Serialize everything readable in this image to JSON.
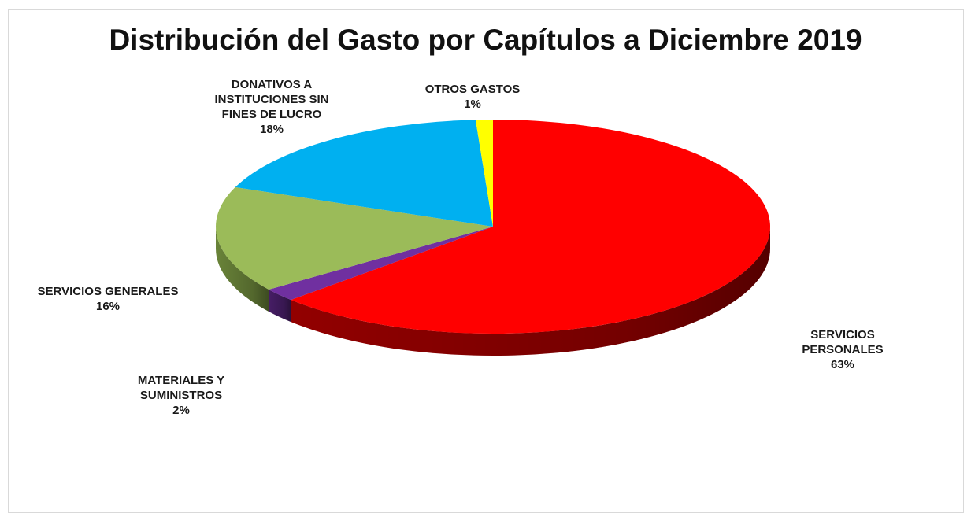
{
  "chart_data": {
    "type": "pie",
    "title": "Distribución del Gasto por Capítulos a Diciembre 2019",
    "legend": "none",
    "slices": [
      {
        "name": "SERVICIOS PERSONALES",
        "label_lines": [
          "SERVICIOS",
          "PERSONALES"
        ],
        "value": 63,
        "value_label": "63%",
        "color": "#ff0000",
        "side_color": "#9a0000"
      },
      {
        "name": "MATERIALES Y SUMINISTROS",
        "label_lines": [
          "MATERIALES Y",
          "SUMINISTROS"
        ],
        "value": 2,
        "value_label": "2%",
        "color": "#7030a0",
        "side_color": "#4a1f6b"
      },
      {
        "name": "SERVICIOS GENERALES",
        "label_lines": [
          "SERVICIOS GENERALES"
        ],
        "value": 16,
        "value_label": "16%",
        "color": "#9bbb59",
        "side_color": "#6f8a3c"
      },
      {
        "name": "DONATIVOS A INSTITUCIONES SIN FINES DE LUCRO",
        "label_lines": [
          "DONATIVOS A",
          "INSTITUCIONES SIN",
          "FINES DE LUCRO"
        ],
        "value": 18,
        "value_label": "18%",
        "color": "#00b0f0",
        "side_color": "#0079a8"
      },
      {
        "name": "OTROS GASTOS",
        "label_lines": [
          "OTROS GASTOS"
        ],
        "value": 1,
        "value_label": "1%",
        "color": "#ffff00",
        "side_color": "#b3b300"
      }
    ]
  }
}
